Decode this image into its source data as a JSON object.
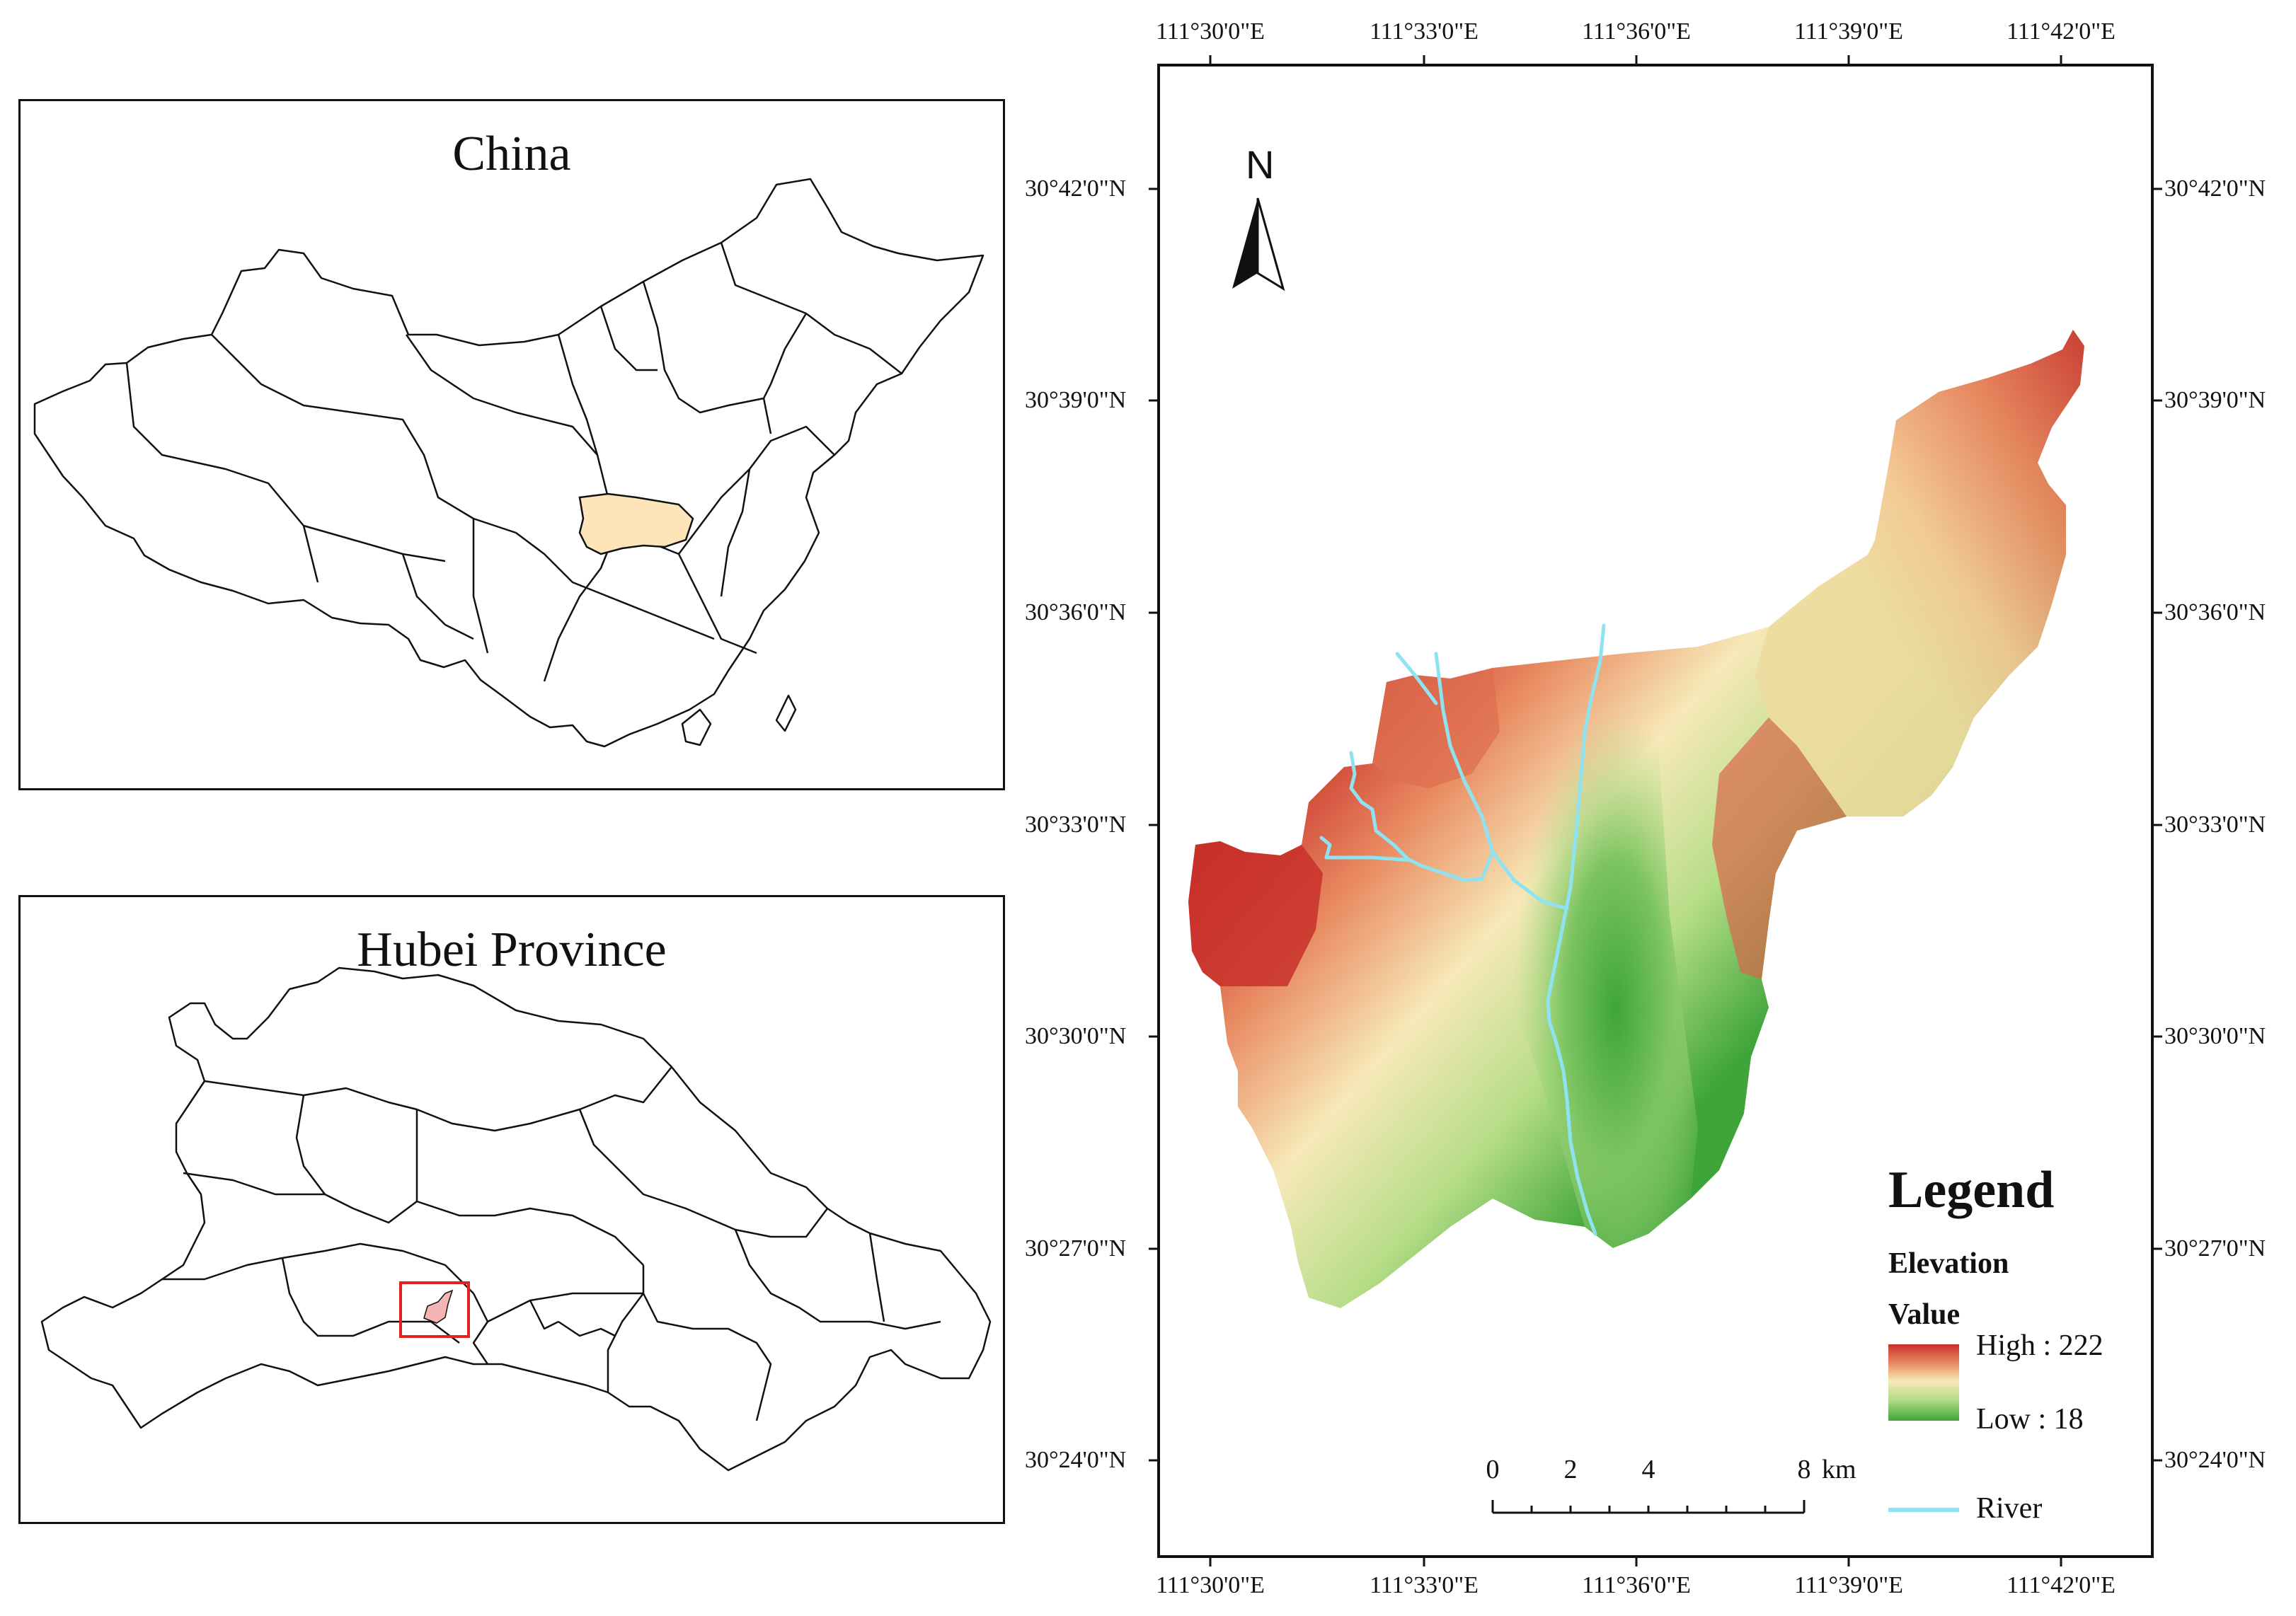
{
  "china_inset": {
    "title": "China",
    "highlight_color": "#fde4b9",
    "highlight_name": "Hubei Province"
  },
  "hubei_inset": {
    "title": "Hubei Province",
    "study_area_box_color": "#e3221c",
    "study_area_fill": "#f4b5b5"
  },
  "main_map": {
    "longitude_labels": [
      "111°30'0\"E",
      "111°33'0\"E",
      "111°36'0\"E",
      "111°39'0\"E",
      "111°42'0\"E"
    ],
    "latitude_labels": [
      "30°42'0\"N",
      "30°39'0\"N",
      "30°36'0\"N",
      "30°33'0\"N",
      "30°30'0\"N",
      "30°27'0\"N",
      "30°24'0\"N"
    ],
    "north_arrow": {
      "label": "N",
      "icon": "north-arrow-icon"
    },
    "scale_bar": {
      "labels": [
        "0",
        "2",
        "4",
        "8"
      ],
      "unit": "km"
    },
    "river_color": "#8fe3f0"
  },
  "legend": {
    "title": "Legend",
    "layer_name": "Elevation",
    "value_heading": "Value",
    "high_label": "High : 222",
    "low_label": "Low : 18",
    "ramp_colors": [
      "#c8302a",
      "#e98b62",
      "#f7e9b8",
      "#b6dd88",
      "#3fa53b"
    ],
    "river_label": "River"
  }
}
